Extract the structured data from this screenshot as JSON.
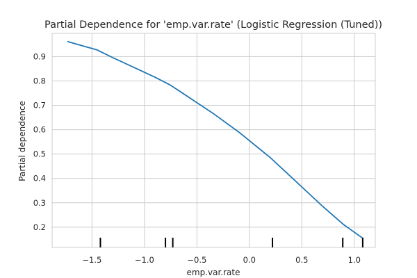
{
  "chart_data": {
    "type": "line",
    "title": "Partial Dependence for 'emp.var.rate' (Logistic Regression (Tuned))",
    "xlabel": "emp.var.rate",
    "ylabel": "Partial dependence",
    "xlim": [
      -1.88,
      1.2
    ],
    "ylim": [
      0.117,
      0.995
    ],
    "x_ticks": [
      -1.5,
      -1.0,
      -0.5,
      0.0,
      0.5,
      1.0
    ],
    "x_tick_labels": [
      "−1.5",
      "−1.0",
      "−0.5",
      "0.0",
      "0.5",
      "1.0"
    ],
    "y_ticks": [
      0.2,
      0.3,
      0.4,
      0.5,
      0.6,
      0.7,
      0.8,
      0.9
    ],
    "y_tick_labels": [
      "0.2",
      "0.3",
      "0.4",
      "0.5",
      "0.6",
      "0.7",
      "0.8",
      "0.9"
    ],
    "grid": true,
    "series": [
      {
        "color": "#1f77b4",
        "x": [
          -1.73,
          -1.6,
          -1.45,
          -1.3,
          -1.1,
          -0.9,
          -0.75,
          -0.55,
          -0.35,
          -0.1,
          0.2,
          0.45,
          0.7,
          0.9,
          1.08
        ],
        "y": [
          0.961,
          0.945,
          0.927,
          0.895,
          0.855,
          0.815,
          0.782,
          0.725,
          0.668,
          0.59,
          0.485,
          0.385,
          0.285,
          0.21,
          0.155
        ]
      }
    ],
    "rug": [
      -1.42,
      -0.8,
      -0.73,
      0.22,
      0.89,
      1.08
    ]
  }
}
